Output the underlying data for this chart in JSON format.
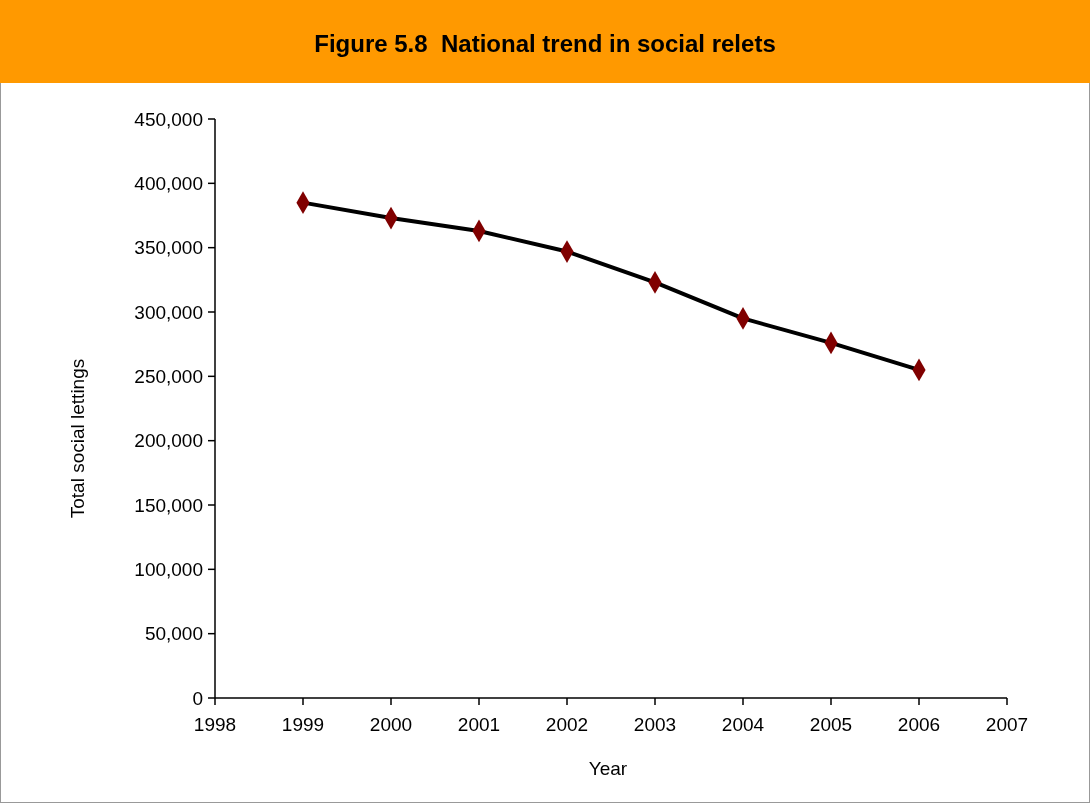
{
  "chart_data": {
    "type": "line",
    "title": "Figure 5.8  National trend in social relets",
    "xlabel": "Year",
    "ylabel": "Total social lettings",
    "x": [
      1999,
      2000,
      2001,
      2002,
      2003,
      2004,
      2005,
      2006
    ],
    "series": [
      {
        "color": "#000000",
        "values": [
          385000,
          373000,
          363000,
          347000,
          323000,
          295000,
          276000,
          255000
        ]
      }
    ],
    "marker": "diamond",
    "line_style": "solid",
    "xlim": [
      1998,
      2007
    ],
    "xticks": [
      1998,
      1999,
      2000,
      2001,
      2002,
      2003,
      2004,
      2005,
      2006,
      2007
    ],
    "ylim": [
      0,
      450000
    ],
    "yticks": [
      {
        "value": 0,
        "label": "0"
      },
      {
        "value": 50000,
        "label": "50,000"
      },
      {
        "value": 100000,
        "label": "100,000"
      },
      {
        "value": 150000,
        "label": "150,000"
      },
      {
        "value": 200000,
        "label": "200,000"
      },
      {
        "value": 250000,
        "label": "250,000"
      },
      {
        "value": 300000,
        "label": "300,000"
      },
      {
        "value": 350000,
        "label": "350,000"
      },
      {
        "value": 400000,
        "label": "400,000"
      },
      {
        "value": 450000,
        "label": "450,000"
      }
    ]
  }
}
